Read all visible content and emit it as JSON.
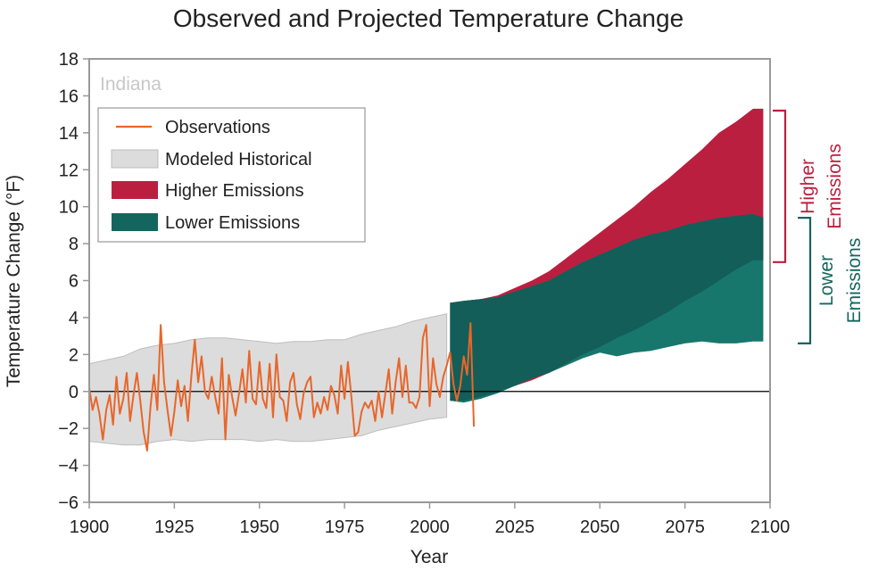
{
  "chart_data": {
    "type": "area",
    "title": "Observed and Projected Temperature Change",
    "region_label": "Indiana",
    "xlabel": "Year",
    "ylabel": "Temperature Change (°F)",
    "xlim": [
      1900,
      2100
    ],
    "ylim": [
      -6,
      18
    ],
    "x_ticks": [
      1900,
      1925,
      1950,
      1975,
      2000,
      2025,
      2050,
      2075,
      2100
    ],
    "y_ticks": [
      -6,
      -4,
      -2,
      0,
      2,
      4,
      6,
      8,
      10,
      12,
      14,
      16,
      18
    ],
    "y_tick_labels": [
      "−6",
      "−4",
      "−2",
      "0",
      "2",
      "4",
      "6",
      "8",
      "10",
      "12",
      "14",
      "16",
      "18"
    ],
    "grid": false,
    "zero_line": true,
    "legend": {
      "placement": "top-left",
      "entries": [
        {
          "label": "Observations",
          "kind": "line",
          "color": "#e8662a"
        },
        {
          "label": "Modeled Historical",
          "kind": "patch",
          "color": "#dcdcdc"
        },
        {
          "label": "Higher Emissions",
          "kind": "patch",
          "color": "#bb1f3f"
        },
        {
          "label": "Lower Emissions",
          "kind": "patch",
          "color": "#13665e"
        }
      ]
    },
    "colors": {
      "observations": "#e8662a",
      "modeled_fill": "#dcdcdc",
      "modeled_edge": "#bdbdbd",
      "higher": "#bb1f3f",
      "lower": "#17776c",
      "overlap": "#135e58",
      "frame": "#999999",
      "higher_bracket": "#bb1f3f",
      "lower_bracket": "#13665e"
    },
    "brackets": [
      {
        "label_lines": [
          "Higher",
          "Emissions"
        ],
        "y_range": [
          7,
          15.2
        ],
        "color": "#bb1f3f"
      },
      {
        "label_lines": [
          "Lower",
          "Emissions"
        ],
        "y_range": [
          2.6,
          9.4
        ],
        "color": "#13665e"
      }
    ],
    "series": [
      {
        "name": "Observations",
        "kind": "line",
        "x": [
          1900,
          1901,
          1902,
          1903,
          1904,
          1905,
          1906,
          1907,
          1908,
          1909,
          1910,
          1911,
          1912,
          1913,
          1914,
          1915,
          1916,
          1917,
          1918,
          1919,
          1920,
          1921,
          1922,
          1923,
          1924,
          1925,
          1926,
          1927,
          1928,
          1929,
          1930,
          1931,
          1932,
          1933,
          1934,
          1935,
          1936,
          1937,
          1938,
          1939,
          1940,
          1941,
          1942,
          1943,
          1944,
          1945,
          1946,
          1947,
          1948,
          1949,
          1950,
          1951,
          1952,
          1953,
          1954,
          1955,
          1956,
          1957,
          1958,
          1959,
          1960,
          1961,
          1962,
          1963,
          1964,
          1965,
          1966,
          1967,
          1968,
          1969,
          1970,
          1971,
          1972,
          1973,
          1974,
          1975,
          1976,
          1977,
          1978,
          1979,
          1980,
          1981,
          1982,
          1983,
          1984,
          1985,
          1986,
          1987,
          1988,
          1989,
          1990,
          1991,
          1992,
          1993,
          1994,
          1995,
          1996,
          1997,
          1998,
          1999,
          2000,
          2001,
          2002,
          2003,
          2004,
          2005,
          2006,
          2007,
          2008,
          2009,
          2010,
          2011,
          2012,
          2013
        ],
        "y": [
          0.2,
          -1.0,
          -0.3,
          -1.2,
          -2.6,
          -1.0,
          -0.2,
          -1.8,
          0.8,
          -1.2,
          -0.4,
          1.0,
          -1.6,
          -0.2,
          1.0,
          -0.5,
          -2.2,
          -3.2,
          -0.8,
          0.9,
          -1.0,
          3.6,
          0.5,
          -1.0,
          -2.4,
          -1.1,
          0.6,
          -0.8,
          0.3,
          -1.6,
          0.8,
          2.8,
          0.5,
          1.9,
          0.0,
          -0.4,
          0.8,
          -0.3,
          -1.2,
          1.8,
          -2.6,
          0.9,
          -0.3,
          -1.3,
          -0.1,
          1.2,
          -0.6,
          2.2,
          -0.4,
          -0.7,
          1.6,
          -0.4,
          -0.9,
          1.5,
          -1.4,
          2.0,
          -0.3,
          -0.5,
          -1.6,
          0.5,
          1.0,
          -0.7,
          -1.5,
          -0.1,
          0.5,
          0.8,
          -1.4,
          -0.6,
          -1.2,
          -0.3,
          -1.0,
          0.3,
          -0.2,
          -1.2,
          1.4,
          -0.4,
          1.6,
          -0.3,
          -2.4,
          -2.2,
          -1.1,
          -0.6,
          -0.9,
          -0.5,
          -1.6,
          0.0,
          -1.4,
          -0.1,
          1.2,
          -1.2,
          0.5,
          1.8,
          -0.3,
          1.4,
          -0.6,
          -0.6,
          -0.9,
          -0.3,
          2.9,
          3.6,
          -0.8,
          1.8,
          0.4,
          -0.3,
          0.8,
          1.4,
          2.1,
          0.4,
          -0.5,
          0.3,
          1.9,
          0.9,
          3.7,
          -1.9
        ]
      },
      {
        "name": "Modeled Historical",
        "kind": "band",
        "x": [
          1900,
          1905,
          1910,
          1915,
          1920,
          1925,
          1930,
          1935,
          1940,
          1945,
          1950,
          1955,
          1960,
          1965,
          1970,
          1975,
          1980,
          1985,
          1990,
          1995,
          2000,
          2005
        ],
        "upper": [
          1.5,
          1.7,
          1.9,
          2.3,
          2.5,
          2.6,
          2.8,
          2.9,
          2.9,
          2.8,
          2.7,
          2.6,
          2.7,
          2.7,
          2.8,
          2.8,
          3.1,
          3.3,
          3.5,
          3.8,
          4.0,
          4.2
        ],
        "lower": [
          -2.7,
          -2.8,
          -2.9,
          -2.9,
          -2.7,
          -2.6,
          -2.7,
          -2.6,
          -2.6,
          -2.6,
          -2.7,
          -2.6,
          -2.7,
          -2.7,
          -2.6,
          -2.5,
          -2.4,
          -2.1,
          -1.9,
          -1.7,
          -1.5,
          -1.4
        ]
      },
      {
        "name": "Higher Emissions",
        "kind": "band",
        "x": [
          2006,
          2010,
          2015,
          2020,
          2025,
          2030,
          2035,
          2040,
          2045,
          2050,
          2055,
          2060,
          2065,
          2070,
          2075,
          2080,
          2085,
          2090,
          2095,
          2098
        ],
        "upper": [
          4.8,
          4.9,
          5.0,
          5.2,
          5.6,
          6.0,
          6.5,
          7.2,
          7.9,
          8.6,
          9.3,
          10.0,
          10.8,
          11.5,
          12.3,
          13.1,
          14.0,
          14.6,
          15.3,
          15.3
        ],
        "lower": [
          -0.5,
          -0.5,
          -0.3,
          0.0,
          0.3,
          0.6,
          1.0,
          1.5,
          2.0,
          2.4,
          2.9,
          3.3,
          3.8,
          4.3,
          4.9,
          5.4,
          6.0,
          6.6,
          7.1,
          7.1
        ]
      },
      {
        "name": "Lower Emissions",
        "kind": "band",
        "x": [
          2006,
          2010,
          2015,
          2020,
          2025,
          2030,
          2035,
          2040,
          2045,
          2050,
          2055,
          2060,
          2065,
          2070,
          2075,
          2080,
          2085,
          2090,
          2095,
          2098
        ],
        "upper": [
          4.8,
          4.9,
          5.0,
          5.1,
          5.4,
          5.7,
          6.0,
          6.5,
          7.0,
          7.4,
          7.8,
          8.2,
          8.5,
          8.7,
          9.0,
          9.2,
          9.4,
          9.5,
          9.6,
          9.4
        ],
        "lower": [
          -0.5,
          -0.6,
          -0.4,
          -0.1,
          0.3,
          0.7,
          1.0,
          1.4,
          1.8,
          2.1,
          1.9,
          2.1,
          2.2,
          2.4,
          2.6,
          2.7,
          2.6,
          2.6,
          2.7,
          2.7
        ]
      }
    ]
  }
}
